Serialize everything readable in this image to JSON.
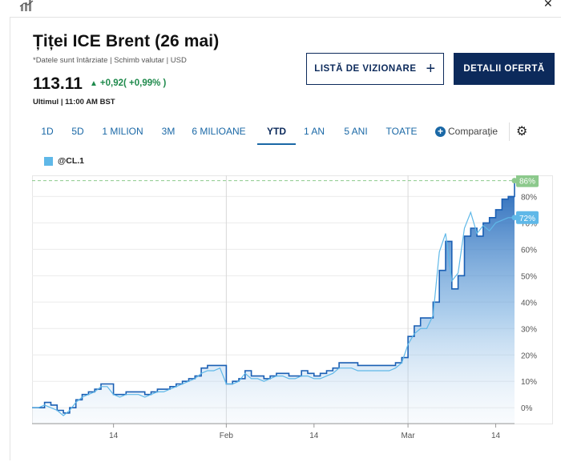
{
  "header": {
    "title": "Țiței ICE Brent (26 mai)",
    "delay_note": "*Datele sunt întârziate | Schimb valutar | USD",
    "price": "113.11",
    "change": "+0,92( +0,99% )",
    "last_time": "Ultimul | 11:00 AM BST",
    "change_color": "#1f8a4c"
  },
  "buttons": {
    "watchlist": "LISTĂ DE VIZIONARE",
    "details": "DETALII OFERTĂ"
  },
  "tabs": [
    "1D",
    "5D",
    "1 MILION",
    "3M",
    "6 MILIOANE",
    "YTD",
    "1 AN",
    "5 ANI",
    "TOATE"
  ],
  "active_tab": "YTD",
  "compare_label": "Comparaţie",
  "icons": [
    "chart-icon",
    "close-icon",
    "plus-icon",
    "gear-icon"
  ],
  "legend": {
    "label": "@CL.1",
    "color": "#5fb8e8"
  },
  "chart_data": {
    "type": "area",
    "title": "",
    "xlabel": "",
    "ylabel": "",
    "x_ticks": [
      "14",
      "Feb",
      "14",
      "Mar",
      "14"
    ],
    "x_tick_positions": [
      14,
      32,
      46,
      61,
      75
    ],
    "y_ticks": [
      "0%",
      "10%",
      "20%",
      "30%",
      "40%",
      "50%",
      "60%",
      "70%",
      "80%"
    ],
    "ylim": [
      -6,
      88
    ],
    "xlim": [
      1,
      78
    ],
    "grid": true,
    "x_vertical_grid": [
      32,
      61
    ],
    "reference_line": 86,
    "series": [
      {
        "name": "Țiței ICE Brent",
        "color": "#1a5fb4",
        "end_label": "86%",
        "values": [
          0,
          0,
          2,
          1,
          -1,
          -2,
          0,
          3,
          5,
          6,
          7,
          9,
          9,
          5,
          5,
          6,
          6,
          6,
          5,
          6,
          7,
          7,
          8,
          9,
          10,
          11,
          12,
          15,
          16,
          16,
          16,
          9,
          10,
          11,
          14,
          12,
          12,
          11,
          12,
          13,
          13,
          12,
          12,
          14,
          13,
          12,
          13,
          14,
          15,
          17,
          17,
          17,
          16,
          16,
          16,
          16,
          16,
          16,
          17,
          19,
          27,
          31,
          34,
          34,
          40,
          52,
          63,
          45,
          50,
          65,
          68,
          65,
          70,
          72,
          75,
          79,
          80,
          86
        ]
      },
      {
        "name": "@CL.1",
        "color": "#5fb8e8",
        "end_label": "72%",
        "values": [
          0,
          0,
          1,
          0,
          -1,
          -3,
          -1,
          2,
          4,
          5,
          6,
          8,
          8,
          5,
          4,
          5,
          5,
          5,
          4,
          5,
          6,
          6,
          7,
          8,
          9,
          10,
          11,
          13,
          14,
          14,
          15,
          9,
          9,
          10,
          13,
          11,
          11,
          10,
          11,
          12,
          12,
          11,
          11,
          12,
          12,
          11,
          11,
          12,
          13,
          15,
          15,
          15,
          14,
          14,
          14,
          14,
          14,
          14,
          15,
          17,
          24,
          28,
          30,
          30,
          35,
          59,
          66,
          48,
          51,
          68,
          74,
          66,
          69,
          67,
          70,
          71,
          72,
          72
        ]
      }
    ]
  }
}
